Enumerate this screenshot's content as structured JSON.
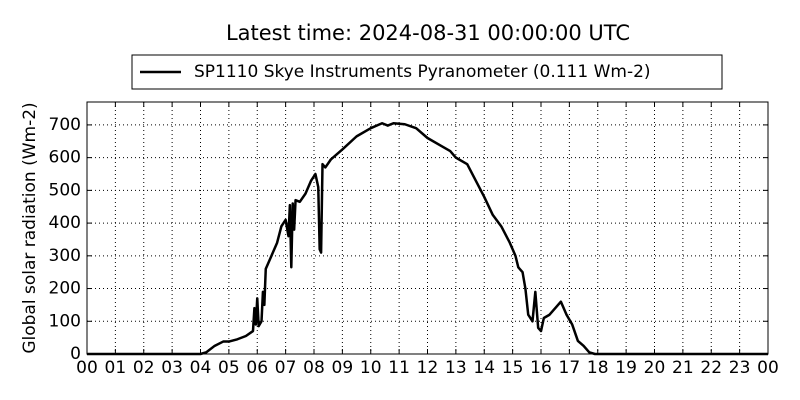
{
  "chart_data": {
    "type": "line",
    "title": "Latest time: 2024-08-31 00:00:00 UTC",
    "y_label": "Global solar radiation (Wm-2)",
    "x": [
      0,
      4.0,
      4.2,
      4.5,
      4.8,
      5.0,
      5.3,
      5.6,
      5.85,
      5.9,
      5.95,
      6.0,
      6.05,
      6.15,
      6.2,
      6.25,
      6.3,
      6.5,
      6.7,
      6.85,
      7.0,
      7.1,
      7.15,
      7.2,
      7.25,
      7.3,
      7.35,
      7.5,
      7.7,
      7.9,
      8.05,
      8.15,
      8.2,
      8.25,
      8.3,
      8.4,
      8.6,
      9.0,
      9.5,
      10.0,
      10.4,
      10.6,
      10.8,
      11.2,
      11.6,
      12.0,
      12.5,
      12.8,
      13.0,
      13.4,
      13.7,
      14.0,
      14.3,
      14.6,
      14.9,
      15.1,
      15.2,
      15.35,
      15.45,
      15.55,
      15.7,
      15.8,
      15.9,
      16.0,
      16.1,
      16.3,
      16.5,
      16.7,
      16.9,
      17.1,
      17.3,
      17.5,
      17.7,
      17.9,
      24
    ],
    "series": [
      {
        "name": "SP1110 Skye Instruments Pyranometer (0.111 Wm-2)",
        "color": "#000000",
        "values": [
          0,
          0,
          5,
          25,
          38,
          38,
          45,
          55,
          70,
          140,
          90,
          170,
          85,
          100,
          190,
          150,
          260,
          300,
          340,
          390,
          410,
          360,
          455,
          265,
          460,
          380,
          470,
          465,
          490,
          530,
          550,
          510,
          320,
          310,
          580,
          570,
          595,
          625,
          665,
          690,
          705,
          698,
          705,
          702,
          690,
          660,
          635,
          620,
          600,
          580,
          530,
          480,
          425,
          390,
          340,
          300,
          265,
          250,
          200,
          120,
          100,
          190,
          80,
          70,
          110,
          120,
          140,
          160,
          120,
          90,
          40,
          25,
          5,
          0,
          0
        ]
      }
    ],
    "xlim": [
      0,
      24
    ],
    "ylim": [
      0,
      770
    ],
    "xticks": [
      {
        "value": 0,
        "label": "00"
      },
      {
        "value": 1,
        "label": "01"
      },
      {
        "value": 2,
        "label": "02"
      },
      {
        "value": 3,
        "label": "03"
      },
      {
        "value": 4,
        "label": "04"
      },
      {
        "value": 5,
        "label": "05"
      },
      {
        "value": 6,
        "label": "06"
      },
      {
        "value": 7,
        "label": "07"
      },
      {
        "value": 8,
        "label": "08"
      },
      {
        "value": 9,
        "label": "09"
      },
      10,
      11,
      12,
      13,
      14,
      15,
      16,
      17,
      18,
      19,
      20,
      21,
      22,
      23,
      {
        "value": 24,
        "label": "00"
      }
    ],
    "yticks": [
      0,
      100,
      200,
      300,
      400,
      500,
      600,
      700
    ],
    "grid": true,
    "legend": "top"
  }
}
